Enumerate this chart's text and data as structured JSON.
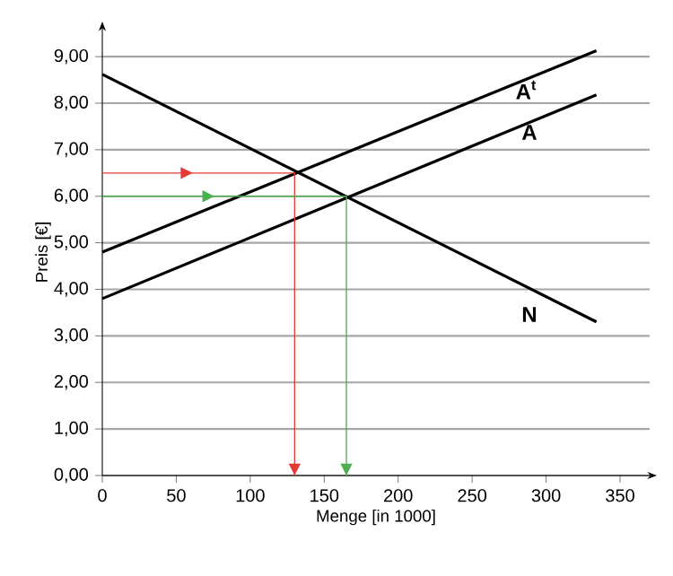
{
  "chart_data": {
    "type": "line",
    "xlabel": "Menge [in 1000]",
    "ylabel": "Preis [€]",
    "xlim": [
      0,
      370
    ],
    "ylim": [
      0,
      9.6
    ],
    "xticks": [
      0,
      50,
      100,
      150,
      200,
      250,
      300,
      350
    ],
    "yticks": [
      {
        "value": 0,
        "label": "0,00"
      },
      {
        "value": 1,
        "label": "1,00"
      },
      {
        "value": 2,
        "label": "2,00"
      },
      {
        "value": 3,
        "label": "3,00"
      },
      {
        "value": 4,
        "label": "4,00"
      },
      {
        "value": 5,
        "label": "5,00"
      },
      {
        "value": 6,
        "label": "6,00"
      },
      {
        "value": 7,
        "label": "7,00"
      },
      {
        "value": 8,
        "label": "8,00"
      },
      {
        "value": 9,
        "label": "9,00"
      }
    ],
    "grid": "y",
    "legend": false,
    "series": [
      {
        "name": "N",
        "color": "#000000",
        "x": [
          0,
          334
        ],
        "values": [
          8.62,
          3.3
        ]
      },
      {
        "name": "A",
        "color": "#000000",
        "x": [
          0,
          334
        ],
        "values": [
          3.8,
          8.18
        ]
      },
      {
        "name": "A$^{t}$",
        "color": "#000000",
        "x": [
          0,
          334
        ],
        "values": [
          4.8,
          9.13
        ]
      },
      {
        "color": "#e53935",
        "x": [
          0,
          130,
          130
        ],
        "values": [
          6.5,
          6.5,
          0
        ]
      },
      {
        "color": "#4caf50",
        "x": [
          0,
          165,
          165
        ],
        "values": [
          6.0,
          6.0,
          0
        ]
      }
    ]
  }
}
